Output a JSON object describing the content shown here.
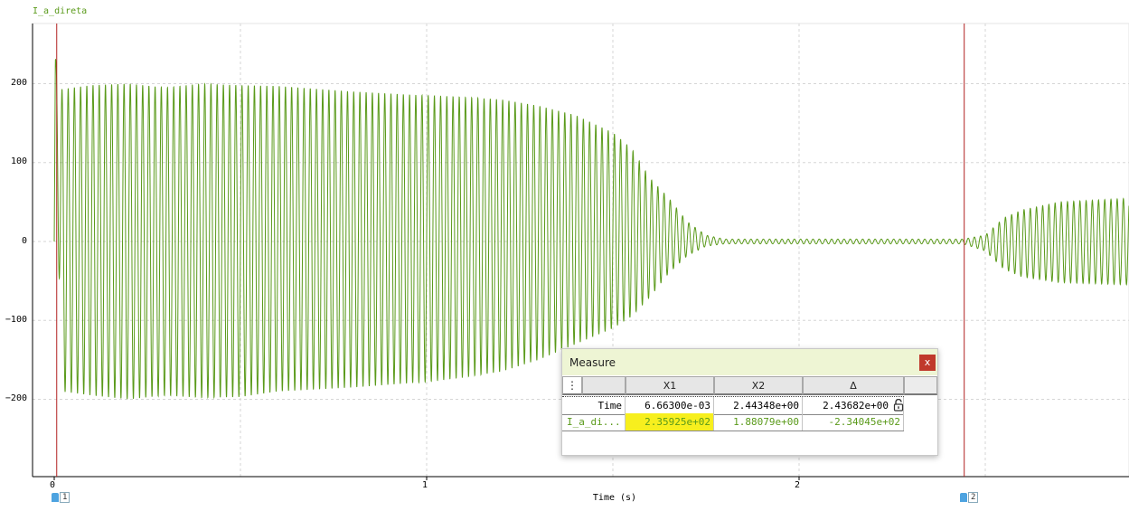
{
  "trace": {
    "name": "I_a_direta",
    "color": "#5a9a1a"
  },
  "axes": {
    "y_ticks": [
      "200",
      "100",
      "0",
      "−100",
      "−200"
    ],
    "x_ticks": [
      "0",
      "1",
      "2"
    ],
    "x_label": "Time (s)",
    "cursor_color": "#b22222"
  },
  "cursors": [
    {
      "label": "1",
      "time": 0.006663
    },
    {
      "label": "2",
      "time": 2.44348
    }
  ],
  "chart_data": {
    "type": "line",
    "title": "I_a_direta",
    "xlabel": "Time (s)",
    "ylabel": "",
    "xlim": [
      -0.02,
      2.9
    ],
    "ylim": [
      -300,
      275
    ],
    "grid": true,
    "series": [
      {
        "name": "I_a_direta",
        "color": "#5a9a1a",
        "frequency_hz": 60
      }
    ],
    "envelope": {
      "t": [
        0.0,
        0.003,
        0.02,
        0.1,
        0.2,
        0.3,
        0.4,
        0.5,
        0.6,
        0.8,
        1.0,
        1.1,
        1.2,
        1.3,
        1.4,
        1.5,
        1.55,
        1.6,
        1.65,
        1.7,
        1.75,
        1.8,
        2.0,
        2.44,
        2.5,
        2.55,
        2.6,
        2.7,
        2.9
      ],
      "upper": [
        0,
        233,
        193,
        198,
        200,
        195,
        200,
        198,
        197,
        190,
        185,
        183,
        180,
        172,
        160,
        138,
        118,
        80,
        55,
        25,
        8,
        3,
        3,
        3,
        8,
        30,
        40,
        50,
        55
      ],
      "lower": [
        0,
        160,
        -190,
        -195,
        -200,
        -195,
        -198,
        -197,
        -190,
        -185,
        -178,
        -172,
        -165,
        -150,
        -130,
        -110,
        -95,
        -70,
        -40,
        -18,
        -6,
        -3,
        -3,
        -3,
        -12,
        -35,
        -45,
        -52,
        -55
      ]
    }
  },
  "measure": {
    "title": "Measure",
    "close_label": "x",
    "menu_icon": "vertical-dots-icon",
    "columns": [
      "X1",
      "X2",
      "Δ"
    ],
    "rows": [
      {
        "name": "Time",
        "x1": "6.66300e-03",
        "x2": "2.44348e+00",
        "delta": "2.43682e+00",
        "color": "#000000",
        "lock_icon": "unlock-icon"
      },
      {
        "name": "I_a_di...",
        "x1": "2.35925e+02",
        "x2": "1.88079e+00",
        "delta": "-2.34045e+02",
        "color": "#5a9a1a",
        "highlight_color": "#f7ef1e"
      }
    ]
  }
}
